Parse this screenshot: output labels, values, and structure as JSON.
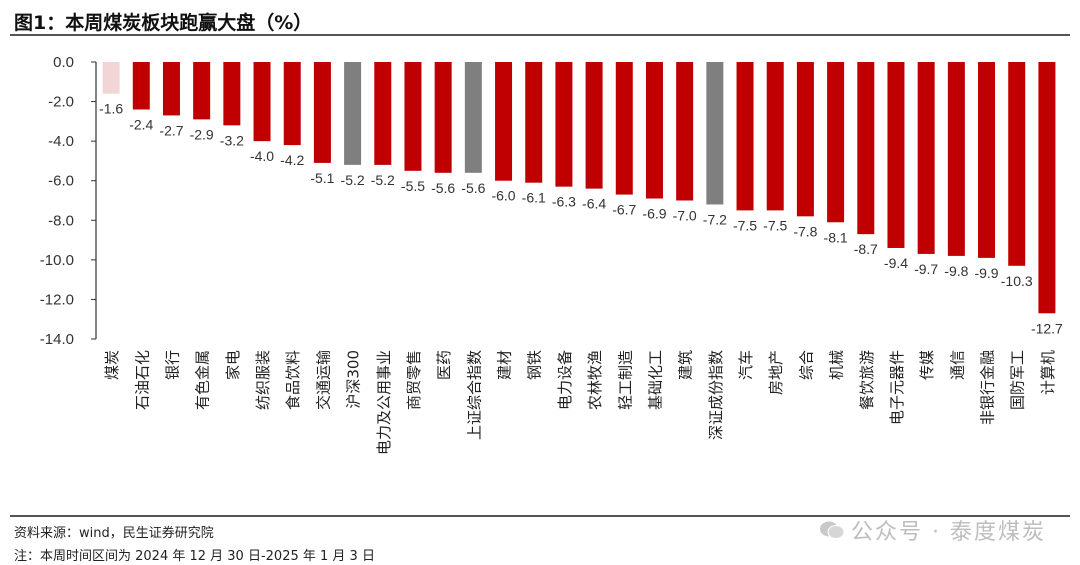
{
  "header": {
    "title": "图1：本周煤炭板块跑赢大盘（%）"
  },
  "footer": {
    "source": "资料来源：wind，民生证券研究院",
    "note": "注：本周时间区间为 2024 年 12 月 30 日-2025 年 1 月 3 日",
    "watermark": "公众号 · 泰度煤炭"
  },
  "colors": {
    "highlight": "#f2d6d6",
    "bar": "#c00000",
    "benchmark": "#7f7f7f"
  },
  "chart_data": {
    "type": "bar",
    "title": "",
    "xlabel": "",
    "ylabel": "",
    "ylim": [
      -14,
      0
    ],
    "yticks": [
      "0.0",
      "-2.0",
      "-4.0",
      "-6.0",
      "-8.0",
      "-10.0",
      "-12.0",
      "-14.0"
    ],
    "grid": false,
    "categories": [
      "煤炭",
      "石油石化",
      "银行",
      "有色金属",
      "家电",
      "纺织服装",
      "食品饮料",
      "交通运输",
      "沪深300",
      "电力及公用事业",
      "商贸零售",
      "医药",
      "上证综合指数",
      "建材",
      "钢铁",
      "电力设备",
      "农林牧渔",
      "轻工制造",
      "基础化工",
      "建筑",
      "深证成份指数",
      "汽车",
      "房地产",
      "综合",
      "机械",
      "餐饮旅游",
      "电子元器件",
      "传媒",
      "通信",
      "非银行金融",
      "国防军工",
      "计算机"
    ],
    "values": [
      -1.6,
      -2.4,
      -2.7,
      -2.9,
      -3.2,
      -4.0,
      -4.2,
      -5.1,
      -5.2,
      -5.2,
      -5.5,
      -5.6,
      -5.6,
      -6.0,
      -6.1,
      -6.3,
      -6.4,
      -6.7,
      -6.9,
      -7.0,
      -7.2,
      -7.5,
      -7.5,
      -7.8,
      -8.1,
      -8.7,
      -9.4,
      -9.7,
      -9.8,
      -9.9,
      -10.3,
      -12.7
    ],
    "labels": [
      "-1.6",
      "-2.4",
      "-2.7",
      "-2.9",
      "-3.2",
      "-4.0",
      "-4.2",
      "-5.1",
      "-5.2",
      "-5.2",
      "-5.5",
      "-5.6",
      "-5.6",
      "-6.0",
      "-6.1",
      "-6.3",
      "-6.4",
      "-6.7",
      "-6.9",
      "-7.0",
      "-7.2",
      "-7.5",
      "-7.5",
      "-7.8",
      "-8.1",
      "-8.7",
      "-9.4",
      "-9.7",
      "-9.8",
      "-9.9",
      "-10.3",
      "-12.7"
    ],
    "bar_kind": [
      "highlight",
      "bar",
      "bar",
      "bar",
      "bar",
      "bar",
      "bar",
      "bar",
      "benchmark",
      "bar",
      "bar",
      "bar",
      "benchmark",
      "bar",
      "bar",
      "bar",
      "bar",
      "bar",
      "bar",
      "bar",
      "benchmark",
      "bar",
      "bar",
      "bar",
      "bar",
      "bar",
      "bar",
      "bar",
      "bar",
      "bar",
      "bar",
      "bar"
    ]
  }
}
